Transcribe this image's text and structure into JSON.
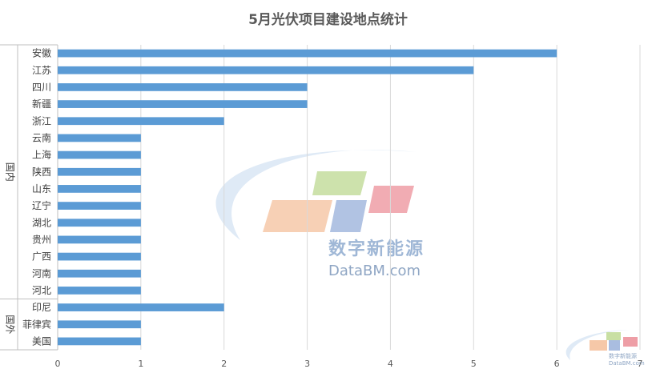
{
  "chart_data": {
    "type": "bar",
    "orientation": "horizontal",
    "title": "5月光伏项目建设地点统计",
    "groups": [
      {
        "name": "国内",
        "categories": [
          "安徽",
          "江苏",
          "四川",
          "新疆",
          "浙江",
          "云南",
          "上海",
          "陕西",
          "山东",
          "辽宁",
          "湖北",
          "贵州",
          "广西",
          "河南",
          "河北"
        ]
      },
      {
        "name": "国外",
        "categories": [
          "印尼",
          "菲律宾",
          "美国"
        ]
      }
    ],
    "categories": [
      "安徽",
      "江苏",
      "四川",
      "新疆",
      "浙江",
      "云南",
      "上海",
      "陕西",
      "山东",
      "辽宁",
      "湖北",
      "贵州",
      "广西",
      "河南",
      "河北",
      "印尼",
      "菲律宾",
      "美国"
    ],
    "values": [
      6,
      5,
      3,
      3,
      2,
      1,
      1,
      1,
      1,
      1,
      1,
      1,
      1,
      1,
      1,
      2,
      1,
      1
    ],
    "xlim": [
      0,
      7
    ],
    "xticks": [
      0,
      1,
      2,
      3,
      4,
      5,
      6,
      7
    ],
    "grid": true,
    "bar_color": "#5b9bd5"
  },
  "watermark": {
    "brand_cn": "数字新能源",
    "brand_en": "DataBM.com"
  }
}
